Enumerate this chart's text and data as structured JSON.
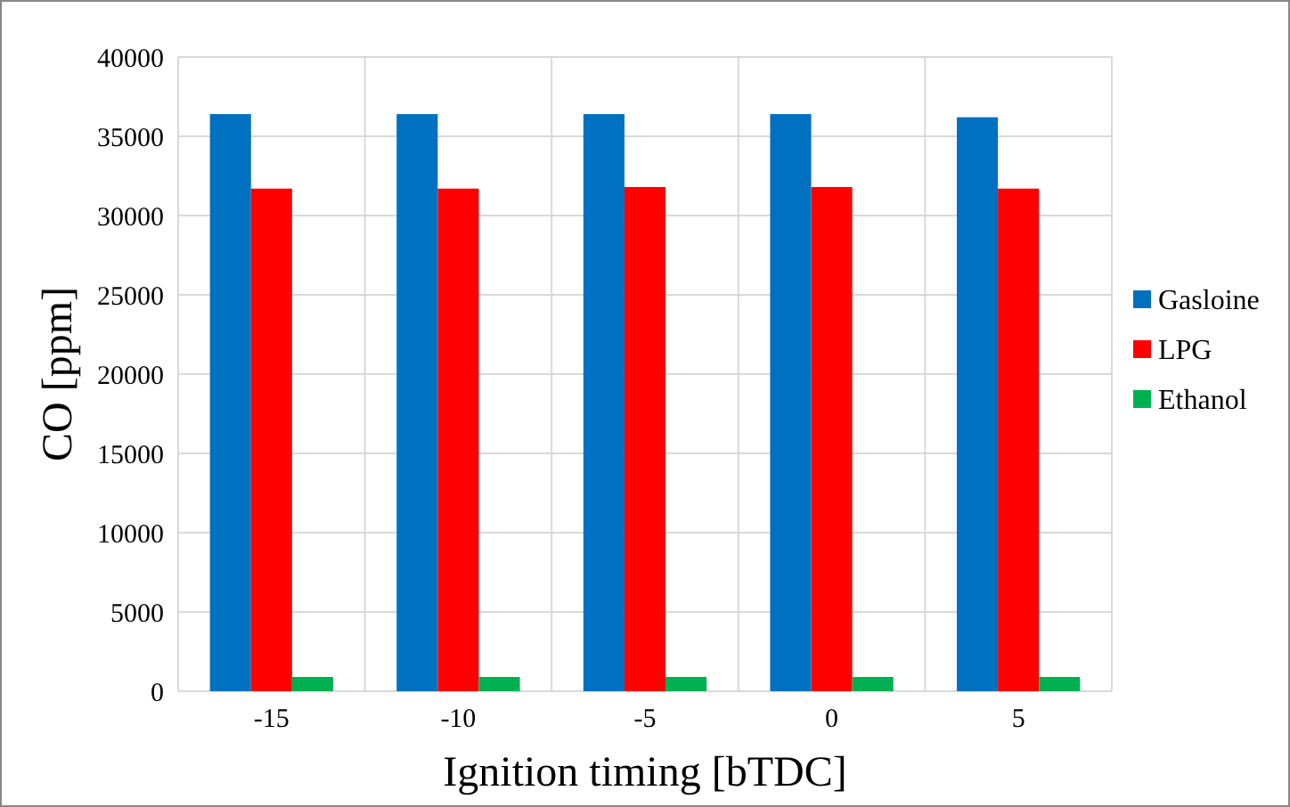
{
  "chart_data": {
    "type": "bar",
    "xlabel": "Ignition timing [bTDC]",
    "ylabel": "CO [ppm]",
    "categories": [
      "-15",
      "-10",
      "-5",
      "0",
      "5"
    ],
    "series": [
      {
        "name": "Gasloine",
        "color": "#0070c0",
        "values": [
          36400,
          36400,
          36400,
          36400,
          36200
        ]
      },
      {
        "name": "LPG",
        "color": "#ff0000",
        "values": [
          31700,
          31700,
          31800,
          31800,
          31700
        ]
      },
      {
        "name": "Ethanol",
        "color": "#00b050",
        "values": [
          900,
          900,
          900,
          900,
          900
        ]
      }
    ],
    "ylim": [
      0,
      40000
    ],
    "yticks": [
      0,
      5000,
      10000,
      15000,
      20000,
      25000,
      30000,
      35000,
      40000
    ],
    "grid": true,
    "legend": "right"
  }
}
